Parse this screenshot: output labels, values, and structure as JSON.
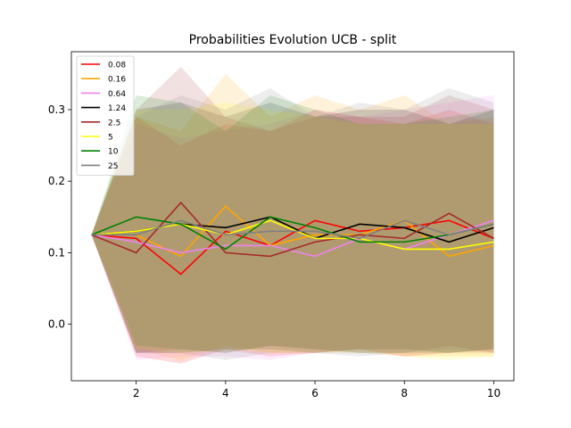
{
  "chart_data": {
    "type": "line",
    "title": "Probabilities Evolution UCB  - split",
    "xlabel": "",
    "ylabel": "",
    "xlim": [
      0.55,
      10.45
    ],
    "ylim": [
      -0.079,
      0.381
    ],
    "x_ticks": [
      2,
      4,
      6,
      8,
      10
    ],
    "y_ticks": [
      0.0,
      0.1,
      0.2,
      0.3
    ],
    "y_tick_labels": [
      "0.0",
      "0.1",
      "0.2",
      "0.3"
    ],
    "grid": false,
    "legend_position": "upper-left",
    "x": [
      1,
      2,
      3,
      4,
      5,
      6,
      7,
      8,
      9,
      10
    ],
    "series": [
      {
        "name": "0.08",
        "color": "#ff0000",
        "values": [
          0.125,
          0.12,
          0.07,
          0.13,
          0.11,
          0.145,
          0.13,
          0.135,
          0.145,
          0.12
        ],
        "upper": [
          0.125,
          0.29,
          0.25,
          0.28,
          0.27,
          0.3,
          0.29,
          0.28,
          0.3,
          0.28
        ],
        "lower": [
          0.125,
          -0.045,
          -0.055,
          -0.035,
          -0.045,
          -0.04,
          -0.035,
          -0.045,
          -0.04,
          -0.04
        ]
      },
      {
        "name": "0.16",
        "color": "#ffa500",
        "values": [
          0.125,
          0.125,
          0.095,
          0.165,
          0.11,
          0.125,
          0.125,
          0.145,
          0.095,
          0.11
        ],
        "upper": [
          0.125,
          0.29,
          0.27,
          0.35,
          0.29,
          0.32,
          0.3,
          0.32,
          0.28,
          0.29
        ],
        "lower": [
          0.125,
          -0.035,
          -0.05,
          -0.03,
          -0.04,
          -0.04,
          -0.035,
          -0.045,
          -0.045,
          -0.045
        ]
      },
      {
        "name": "0.64",
        "color": "#ee82ee",
        "values": [
          0.125,
          0.115,
          0.1,
          0.11,
          0.11,
          0.095,
          0.12,
          0.105,
          0.125,
          0.145
        ],
        "upper": [
          0.125,
          0.28,
          0.26,
          0.27,
          0.28,
          0.3,
          0.29,
          0.3,
          0.31,
          0.32
        ],
        "lower": [
          0.125,
          -0.05,
          -0.045,
          -0.045,
          -0.05,
          -0.04,
          -0.04,
          -0.045,
          -0.04,
          -0.035
        ]
      },
      {
        "name": "1.24",
        "color": "#000000",
        "values": [
          0.125,
          0.13,
          0.14,
          0.135,
          0.15,
          0.12,
          0.14,
          0.135,
          0.115,
          0.135
        ],
        "upper": [
          0.125,
          0.3,
          0.31,
          0.29,
          0.31,
          0.29,
          0.3,
          0.3,
          0.28,
          0.3
        ],
        "lower": [
          0.125,
          -0.04,
          -0.04,
          -0.035,
          -0.035,
          -0.04,
          -0.035,
          -0.035,
          -0.04,
          -0.035
        ]
      },
      {
        "name": "2.5",
        "color": "#a52a2a",
        "values": [
          0.125,
          0.1,
          0.17,
          0.1,
          0.095,
          0.115,
          0.125,
          0.12,
          0.155,
          0.12
        ],
        "upper": [
          0.125,
          0.3,
          0.36,
          0.29,
          0.27,
          0.29,
          0.29,
          0.29,
          0.32,
          0.3
        ],
        "lower": [
          0.125,
          -0.04,
          -0.035,
          -0.04,
          -0.03,
          -0.035,
          -0.04,
          -0.04,
          -0.03,
          -0.04
        ]
      },
      {
        "name": "5",
        "color": "#ffff00",
        "values": [
          0.125,
          0.13,
          0.14,
          0.125,
          0.145,
          0.12,
          0.12,
          0.105,
          0.105,
          0.115
        ],
        "upper": [
          0.125,
          0.3,
          0.3,
          0.31,
          0.3,
          0.29,
          0.28,
          0.28,
          0.28,
          0.28
        ],
        "lower": [
          0.125,
          -0.035,
          -0.04,
          -0.035,
          -0.04,
          -0.04,
          -0.04,
          -0.045,
          -0.05,
          -0.045
        ]
      },
      {
        "name": "10",
        "color": "#008000",
        "values": [
          0.125,
          0.15,
          0.14,
          0.105,
          0.15,
          0.135,
          0.115,
          0.115,
          0.125,
          0.14
        ],
        "upper": [
          0.125,
          0.32,
          0.31,
          0.27,
          0.32,
          0.3,
          0.28,
          0.28,
          0.29,
          0.3
        ],
        "lower": [
          0.125,
          -0.03,
          -0.035,
          -0.04,
          -0.03,
          -0.035,
          -0.04,
          -0.04,
          -0.04,
          -0.035
        ]
      },
      {
        "name": "25",
        "color": "#808080",
        "values": [
          0.125,
          0.125,
          0.145,
          0.125,
          0.13,
          0.13,
          0.12,
          0.145,
          0.125,
          0.14
        ],
        "upper": [
          0.125,
          0.29,
          0.32,
          0.3,
          0.33,
          0.29,
          0.31,
          0.3,
          0.33,
          0.31
        ],
        "lower": [
          0.125,
          -0.04,
          -0.04,
          -0.05,
          -0.04,
          -0.04,
          -0.045,
          -0.04,
          -0.035,
          -0.04
        ]
      }
    ]
  }
}
